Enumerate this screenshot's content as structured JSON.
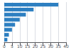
{
  "chart_data": {
    "type": "bar",
    "orientation": "horizontal",
    "categories": [
      null,
      null,
      null,
      null,
      null,
      null,
      null,
      null
    ],
    "values": [
      35,
      19,
      14,
      10,
      7,
      5,
      3,
      2
    ],
    "color": "#2d7fc1",
    "xlim": [
      0,
      40
    ],
    "xticks": [
      0,
      5,
      10,
      15,
      20,
      25,
      30,
      35,
      40
    ],
    "grid": true,
    "tick_labels": "x"
  }
}
